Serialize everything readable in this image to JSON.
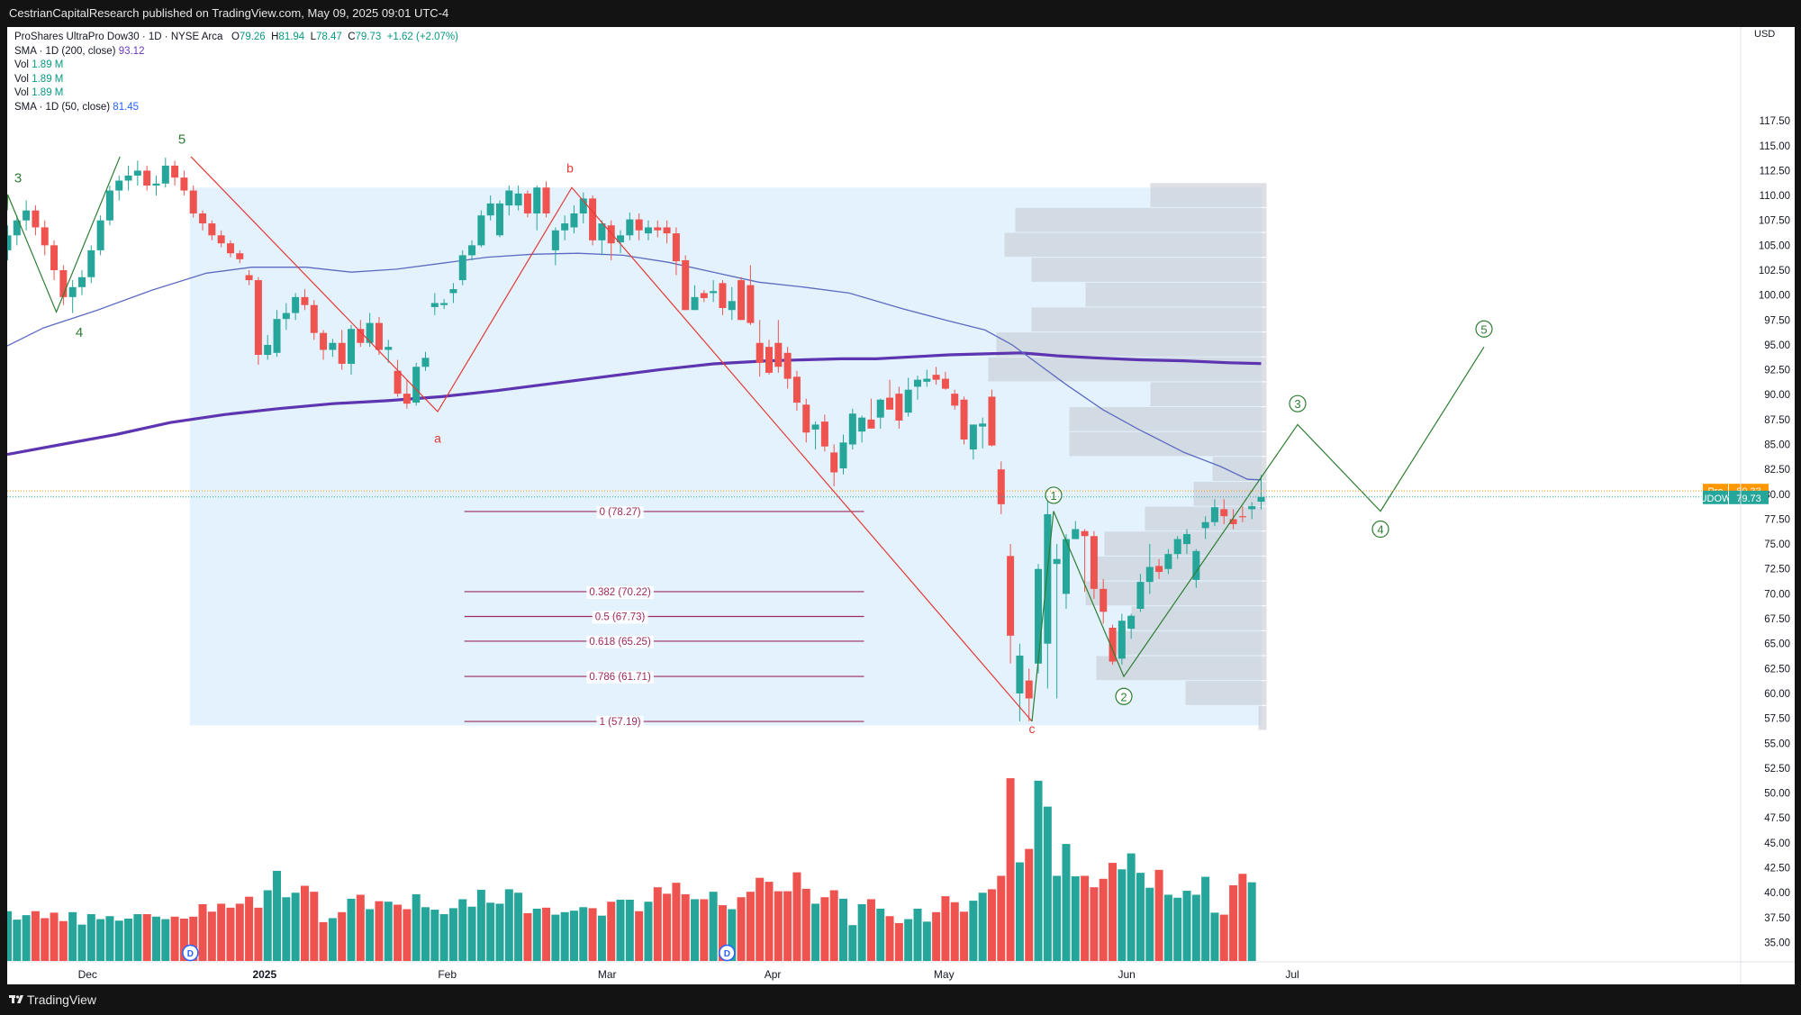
{
  "publisher": "CestrianCapitalResearch published on TradingView.com, May 09, 2025 09:01 UTC-4",
  "branding": "TradingView",
  "legend": {
    "title": "ProShares UltraPro Dow30 · 1D · NYSE Arca",
    "o_label": "O",
    "o": "79.26",
    "h_label": "H",
    "h": "81.94",
    "l_label": "L",
    "l": "78.47",
    "c_label": "C",
    "c": "79.73",
    "change": "+1.62 (+2.07%)",
    "sma200": "SMA · 1D (200, close)",
    "sma200_value": "93.12",
    "vol_label": "Vol",
    "vol_value": "1.89 M",
    "sma50": "SMA · 1D (50, close)",
    "sma50_value": "81.45"
  },
  "axis": {
    "unit": "USD",
    "pre_tag": "Pre",
    "pre_value": "80.33",
    "ticker_tag": "UDOW",
    "ticker_value": "79.73"
  },
  "colors": {
    "up": "#26a69a",
    "down": "#ef5350",
    "sma200": "#5e35b1",
    "sma50": "#5c6bc0",
    "wave": "#2e7d32",
    "abc": "#e53935",
    "fib": "#9c2c5e",
    "range_box": "#e3f2fd",
    "volume_profile": "#c8ccd3"
  },
  "chart_data": {
    "type": "candlestick",
    "symbol": "UDOW",
    "ylim": [
      33.5,
      120
    ],
    "y_ticks": [
      "35.00",
      "37.50",
      "40.00",
      "42.50",
      "45.00",
      "47.50",
      "50.00",
      "52.50",
      "55.00",
      "57.50",
      "60.00",
      "62.50",
      "65.00",
      "67.50",
      "70.00",
      "72.50",
      "75.00",
      "77.50",
      "80.00",
      "82.50",
      "85.00",
      "87.50",
      "90.00",
      "92.50",
      "95.00",
      "97.50",
      "100.00",
      "102.50",
      "105.00",
      "107.50",
      "110.00",
      "112.50",
      "115.00",
      "117.50"
    ],
    "x_ticks": [
      {
        "label": "Dec",
        "date": "2024-12-02"
      },
      {
        "label": "2025",
        "date": "2025-01-02"
      },
      {
        "label": "Feb",
        "date": "2025-02-03"
      },
      {
        "label": "Mar",
        "date": "2025-03-03"
      },
      {
        "label": "Apr",
        "date": "2025-04-01"
      },
      {
        "label": "May",
        "date": "2025-05-01"
      },
      {
        "label": "Jun",
        "date": "2025-06-02"
      },
      {
        "label": "Jul",
        "date": "2025-07-01"
      }
    ],
    "candles_ohlc": [
      [
        104.5,
        107,
        103.5,
        106
      ],
      [
        106,
        108,
        105,
        107.5
      ],
      [
        107.5,
        109.5,
        106.5,
        108.5
      ],
      [
        108.5,
        109,
        106,
        106.8
      ],
      [
        106.8,
        107.5,
        104,
        105
      ],
      [
        105,
        105.5,
        101.5,
        102.5
      ],
      [
        102.5,
        103,
        99,
        99.8
      ],
      [
        99.8,
        101.5,
        98.2,
        100.8
      ],
      [
        100.8,
        102.5,
        100,
        101.8
      ],
      [
        101.8,
        105,
        101.2,
        104.5
      ],
      [
        104.5,
        108,
        104,
        107.5
      ],
      [
        107.5,
        111,
        107,
        110.5
      ],
      [
        110.5,
        112,
        109.5,
        111.5
      ],
      [
        111.5,
        113,
        110.5,
        112
      ],
      [
        112,
        113.5,
        111,
        112.5
      ],
      [
        112.5,
        113,
        110.5,
        111
      ],
      [
        111,
        112,
        110,
        111.2
      ],
      [
        111.2,
        113.8,
        110.8,
        113
      ],
      [
        113,
        113.5,
        111,
        111.8
      ],
      [
        111.8,
        112.5,
        110,
        110.5
      ],
      [
        110.5,
        111,
        107.8,
        108.2
      ],
      [
        108.2,
        108.5,
        106.5,
        107.2
      ],
      [
        107.2,
        107.5,
        105.5,
        106
      ],
      [
        106,
        106.5,
        104.8,
        105.2
      ],
      [
        105.2,
        105.5,
        103.8,
        104.2
      ],
      [
        104.2,
        104.5,
        103.2,
        103.6
      ],
      [
        102,
        102.5,
        101,
        101.5
      ],
      [
        101.5,
        101.8,
        93,
        94
      ],
      [
        94,
        96,
        93.5,
        95
      ],
      [
        94.2,
        98.5,
        93.8,
        97.6
      ],
      [
        97.6,
        99.2,
        96.5,
        98.2
      ],
      [
        98.2,
        100.2,
        97.5,
        99.8
      ],
      [
        99.8,
        100.6,
        98.5,
        99
      ],
      [
        99,
        99.5,
        95.5,
        96.2
      ],
      [
        96.2,
        96.5,
        93.5,
        94.5
      ],
      [
        94.5,
        95.6,
        93.8,
        95.2
      ],
      [
        95.2,
        96.5,
        92.5,
        93.1
      ],
      [
        93.1,
        97,
        92,
        96.6
      ],
      [
        96.6,
        97.5,
        94.8,
        95.2
      ],
      [
        95.2,
        98.2,
        94.8,
        97.2
      ],
      [
        97.2,
        97.8,
        94,
        94.5
      ],
      [
        94.5,
        95.5,
        93.2,
        94.8
      ],
      [
        92.4,
        93.5,
        89.8,
        90.1
      ],
      [
        90.1,
        91.5,
        88.6,
        89.1
      ],
      [
        89.2,
        93.2,
        88.9,
        92.8
      ],
      [
        92.8,
        94.3,
        92.4,
        93.7
      ],
      [
        98.8,
        100.2,
        98,
        99.2
      ],
      [
        99,
        99.6,
        98.6,
        99.2
      ],
      [
        100.2,
        101.2,
        99.2,
        100.6
      ],
      [
        101.5,
        104.5,
        101,
        104
      ],
      [
        104,
        105.5,
        103.5,
        105
      ],
      [
        105,
        108.5,
        104.8,
        108
      ],
      [
        108,
        110,
        107.5,
        109.2
      ],
      [
        106,
        109.5,
        105.8,
        109.2
      ],
      [
        109,
        111,
        108,
        110.5
      ],
      [
        109,
        111,
        108.5,
        110.2
      ],
      [
        110.2,
        110.5,
        107.8,
        108.2
      ],
      [
        108.2,
        111,
        106.5,
        110.8
      ],
      [
        110.8,
        111.4,
        107.8,
        108.2
      ],
      [
        104.5,
        106.8,
        103,
        106.5
      ],
      [
        106.5,
        108,
        105.5,
        107.2
      ],
      [
        106.8,
        109,
        106.2,
        108.2
      ],
      [
        108.2,
        110.3,
        107.2,
        109.7
      ],
      [
        109.7,
        110,
        105,
        105.5
      ],
      [
        105.5,
        107.5,
        104,
        107.2
      ],
      [
        107,
        107.5,
        103.5,
        105.2
      ],
      [
        105.3,
        106.5,
        104.2,
        106
      ],
      [
        106,
        108.3,
        105.5,
        107.6
      ],
      [
        107.6,
        108.2,
        105.5,
        106.5
      ],
      [
        106.2,
        107.5,
        105.5,
        106.8
      ],
      [
        106.8,
        107.5,
        105.8,
        106.5
      ],
      [
        106.8,
        107.5,
        105.2,
        106.2
      ],
      [
        106.2,
        106.8,
        102,
        103.4
      ],
      [
        103.5,
        104,
        98.5,
        98.5
      ],
      [
        98.5,
        101,
        98.5,
        99.8
      ],
      [
        100.2,
        100.5,
        99.3,
        99.7
      ],
      [
        100.2,
        101.5,
        99.3,
        100.4
      ],
      [
        101.2,
        101.5,
        98,
        98.7
      ],
      [
        98.5,
        100.8,
        97.5,
        99.4
      ],
      [
        101.5,
        101.8,
        98,
        97.5
      ],
      [
        101,
        103,
        97,
        97.2
      ],
      [
        95.2,
        97.5,
        91.8,
        93.2
      ],
      [
        94.8,
        95.5,
        92,
        92.2
      ],
      [
        95.2,
        97.5,
        92.2,
        92.8
      ],
      [
        94.2,
        94.8,
        90.6,
        91.6
      ],
      [
        91.8,
        92.4,
        88.4,
        89.2
      ],
      [
        89,
        89.6,
        85.2,
        86.2
      ],
      [
        86.5,
        87.3,
        84.5,
        87
      ],
      [
        87.3,
        88,
        84.3,
        84.8
      ],
      [
        84.2,
        85,
        80.8,
        82.2
      ],
      [
        82.6,
        86,
        82,
        85.2
      ],
      [
        85,
        88.6,
        84.5,
        88.1
      ],
      [
        86.3,
        87.9,
        85.2,
        87.7
      ],
      [
        87.5,
        89.6,
        86.6,
        86.6
      ],
      [
        87.7,
        89.6,
        86.6,
        89.5
      ],
      [
        89.7,
        91.5,
        88.6,
        88.5
      ],
      [
        90.1,
        90.8,
        86.6,
        87.4
      ],
      [
        88.2,
        91.7,
        87.8,
        90.5
      ],
      [
        90.8,
        91.9,
        89.5,
        91.5
      ],
      [
        91.3,
        92.5,
        90.8,
        91.6
      ],
      [
        92,
        92.8,
        91,
        91.5
      ],
      [
        91.6,
        92.3,
        90.5,
        90.6
      ],
      [
        90.1,
        90.5,
        88.5,
        88.9
      ],
      [
        89.5,
        89.8,
        85,
        85.5
      ],
      [
        84.5,
        87,
        83.5,
        87
      ],
      [
        86.8,
        87.7,
        84.6,
        87.1
      ],
      [
        89.8,
        90.5,
        84.8,
        84.9
      ],
      [
        82.5,
        83.3,
        78,
        79
      ],
      [
        73.8,
        75,
        63,
        65.8
      ],
      [
        60,
        65,
        57.2,
        63.8
      ],
      [
        61.3,
        62.5,
        57.2,
        59.5
      ],
      [
        63,
        73,
        62,
        72.5
      ],
      [
        65,
        80,
        60.5,
        78
      ],
      [
        73,
        75,
        59.5,
        73.5
      ],
      [
        70,
        76,
        68.5,
        75.5
      ],
      [
        75.5,
        77.3,
        75.5,
        76.5
      ],
      [
        76.3,
        76.5,
        70.2,
        75.8
      ],
      [
        75.8,
        76.3,
        69.5,
        70.5
      ],
      [
        70.5,
        71.5,
        67,
        68.2
      ],
      [
        66.6,
        66.9,
        62.9,
        63.2
      ],
      [
        63.5,
        68,
        62.9,
        67.3
      ],
      [
        66.5,
        68,
        65.5,
        67.8
      ],
      [
        68.5,
        72,
        68.2,
        71.2
      ],
      [
        71.2,
        75,
        70,
        72.7
      ],
      [
        72.8,
        73.5,
        71.5,
        72.2
      ],
      [
        72.5,
        74.5,
        72,
        74
      ],
      [
        74,
        75.8,
        73.5,
        75.5
      ],
      [
        75,
        76.5,
        74,
        76
      ],
      [
        71.4,
        74.5,
        70.6,
        74.3
      ],
      [
        76.6,
        77.8,
        75.5,
        77.2
      ],
      [
        77.2,
        79.5,
        76.8,
        78.7
      ],
      [
        78.5,
        79.5,
        77,
        77.8
      ],
      [
        77.5,
        78.5,
        76.5,
        77
      ],
      [
        77.8,
        78.8,
        77.2,
        77.7
      ],
      [
        78.5,
        79.2,
        77.5,
        78.8
      ],
      [
        79.26,
        81.94,
        78.47,
        79.73
      ]
    ],
    "volume_levels": [
      1.0,
      0.83,
      0.92,
      1.0,
      0.86,
      0.97,
      0.8,
      0.98,
      0.73,
      0.94,
      0.84,
      0.9,
      0.81,
      0.85,
      0.94,
      0.94,
      0.89,
      0.84,
      0.89,
      0.85,
      0.89,
      1.14,
      0.99,
      1.15,
      1.07,
      1.15,
      1.29,
      1.07,
      1.42,
      1.81,
      1.28,
      1.37,
      1.51,
      1.39,
      0.78,
      0.86,
      0.98,
      1.25,
      1.33,
      1.04,
      1.2,
      1.19,
      1.13,
      1.04,
      1.34,
      1.08,
      1.03,
      0.94,
      1.06,
      1.24,
      1.09,
      1.43,
      1.17,
      1.15,
      1.44,
      1.37,
      0.96,
      1.05,
      1.07,
      0.93,
      0.98,
      1.01,
      1.08,
      1.06,
      0.91,
      1.19,
      1.23,
      1.23,
      1.0,
      1.19,
      1.48,
      1.35,
      1.57,
      1.34,
      1.24,
      1.24,
      1.39,
      1.12,
      1.04,
      1.28,
      1.39,
      1.67,
      1.59,
      1.4,
      1.4,
      1.78,
      1.45,
      1.15,
      1.28,
      1.42,
      1.25,
      0.72,
      1.14,
      1.24,
      1.05,
      0.9,
      0.76,
      0.84,
      1.05,
      0.79,
      0.98,
      1.3,
      1.18,
      0.99,
      1.21,
      1.37,
      1.44,
      1.71,
      3.67,
      1.98,
      2.25,
      3.62,
      3.1,
      1.71,
      2.35,
      1.7,
      1.71,
      1.48,
      1.65,
      1.97,
      1.84,
      2.16,
      1.77,
      1.47,
      1.83,
      1.33,
      1.27,
      1.41,
      1.33,
      1.69,
      0.97,
      0.93,
      1.52,
      1.75,
      1.58
    ],
    "sma50_points": [
      [
        0,
        94.9
      ],
      [
        40,
        96.7
      ],
      [
        100,
        98.5
      ],
      [
        160,
        100.5
      ],
      [
        220,
        102.2
      ],
      [
        270,
        102.8
      ],
      [
        330,
        102.8
      ],
      [
        380,
        102.3
      ],
      [
        430,
        102.6
      ],
      [
        480,
        103.2
      ],
      [
        530,
        103.8
      ],
      [
        580,
        104.1
      ],
      [
        630,
        104.2
      ],
      [
        680,
        104
      ],
      [
        730,
        103.3
      ],
      [
        780,
        102.3
      ],
      [
        830,
        101.3
      ],
      [
        880,
        100.8
      ],
      [
        930,
        100.2
      ],
      [
        990,
        98.6
      ],
      [
        1040,
        97.4
      ],
      [
        1080,
        96.5
      ],
      [
        1110,
        95
      ],
      [
        1140,
        93
      ],
      [
        1170,
        91
      ],
      [
        1210,
        88.5
      ],
      [
        1250,
        86.5
      ],
      [
        1300,
        84.2
      ],
      [
        1340,
        82.8
      ],
      [
        1370,
        81.5
      ],
      [
        1385,
        81.45
      ]
    ],
    "sma200_points": [
      [
        0,
        84
      ],
      [
        60,
        85
      ],
      [
        120,
        86
      ],
      [
        180,
        87.2
      ],
      [
        240,
        88
      ],
      [
        300,
        88.6
      ],
      [
        360,
        89.1
      ],
      [
        420,
        89.4
      ],
      [
        480,
        89.8
      ],
      [
        540,
        90.4
      ],
      [
        600,
        91.1
      ],
      [
        660,
        91.8
      ],
      [
        720,
        92.5
      ],
      [
        780,
        93.1
      ],
      [
        840,
        93.4
      ],
      [
        880,
        93.5
      ],
      [
        920,
        93.6
      ],
      [
        960,
        93.6
      ],
      [
        1000,
        93.8
      ],
      [
        1040,
        94
      ],
      [
        1080,
        94.1
      ],
      [
        1120,
        94.2
      ],
      [
        1160,
        93.9
      ],
      [
        1200,
        93.7
      ],
      [
        1250,
        93.5
      ],
      [
        1300,
        93.4
      ],
      [
        1350,
        93.2
      ],
      [
        1385,
        93.12
      ]
    ],
    "elliott_waves": [
      {
        "label": "3",
        "value": 110.1
      },
      {
        "label": "4",
        "value": 98.3
      },
      {
        "label": "5",
        "value": 113.9
      }
    ],
    "abc_correction": [
      {
        "label": "a",
        "value": 88.3
      },
      {
        "label": "b",
        "value": 110.8
      },
      {
        "label": "c",
        "value": 57.2
      }
    ],
    "impulse_projection": [
      {
        "label": "1",
        "value": 78.3
      },
      {
        "label": "2",
        "value": 61.7
      },
      {
        "label": "3",
        "value": 87
      },
      {
        "label": "4",
        "value": 78.3
      },
      {
        "label": "5",
        "value": 94.8
      }
    ],
    "fibonacci_retracement": [
      {
        "label": "0 (78.27)",
        "value": 78.27
      },
      {
        "label": "0.382 (70.22)",
        "value": 70.22
      },
      {
        "label": "0.5 (67.73)",
        "value": 67.73
      },
      {
        "label": "0.618 (65.25)",
        "value": 65.25
      },
      {
        "label": "0.786 (61.71)",
        "value": 61.71
      },
      {
        "label": "1 (57.19)",
        "value": 57.19
      }
    ],
    "volume_profile": [
      {
        "price": 110.0,
        "vol": 0.43
      },
      {
        "price": 107.5,
        "vol": 0.93
      },
      {
        "price": 105.0,
        "vol": 0.97
      },
      {
        "price": 102.5,
        "vol": 0.87
      },
      {
        "price": 100.0,
        "vol": 0.67
      },
      {
        "price": 97.5,
        "vol": 0.87
      },
      {
        "price": 95.0,
        "vol": 1.0
      },
      {
        "price": 92.5,
        "vol": 1.03
      },
      {
        "price": 90.0,
        "vol": 0.43
      },
      {
        "price": 87.5,
        "vol": 0.73
      },
      {
        "price": 85.0,
        "vol": 0.73
      },
      {
        "price": 82.5,
        "vol": 0.2
      },
      {
        "price": 80.0,
        "vol": 0.27
      },
      {
        "price": 77.5,
        "vol": 0.45
      },
      {
        "price": 75.0,
        "vol": 0.6
      },
      {
        "price": 72.5,
        "vol": 0.63
      },
      {
        "price": 70.0,
        "vol": 0.67
      },
      {
        "price": 67.5,
        "vol": 0.5
      },
      {
        "price": 65.0,
        "vol": 0.57
      },
      {
        "price": 62.5,
        "vol": 0.63
      },
      {
        "price": 60.0,
        "vol": 0.3
      },
      {
        "price": 57.5,
        "vol": 0.03
      }
    ],
    "dividends": [
      {
        "label": "D",
        "date": "2024-12-20"
      },
      {
        "label": "D",
        "date": "2025-03-24"
      }
    ],
    "last_price": 79.73,
    "pre_price": 80.33
  }
}
